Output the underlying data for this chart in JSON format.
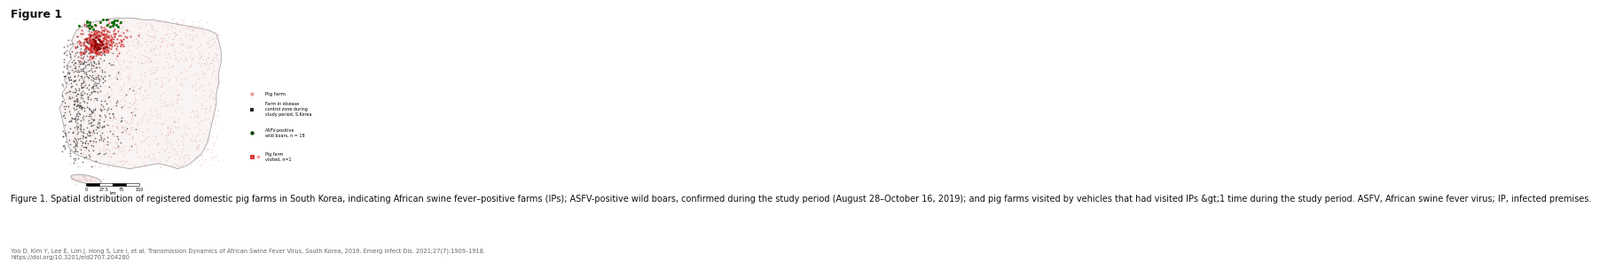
{
  "figure_title": "Figure 1",
  "caption": "Figure 1. Spatial distribution of registered domestic pig farms in South Korea, indicating African swine fever–positive farms (IPs); ASFV-positive wild boars, confirmed during the study period (August 28–October 16, 2019); and pig farms visited by vehicles that had visited IPs &gt;1 time during the study period. ASFV, African swine fever virus; IP, infected premises.",
  "citation": "Yoo D, Kim Y, Lee E, Lim J, Hong S, Lee I, et al. Transmission Dynamics of African Swine Fever Virus, South Korea, 2019. Emerg Infect Dis. 2021;27(7):1909–1918.\nhttps://doi.org/10.3201/eid2707.204280",
  "background_color": "#ffffff",
  "title_fontsize": 9,
  "caption_fontsize": 7,
  "citation_fontsize": 4.8,
  "legend_texts": [
    "Pig farm",
    "Farm in disease\ncontrol zone during\nstudy period, S.Korea",
    "ASFV-positive\nwild boars, n = 18",
    "Pig farm\nvisited, n=1"
  ],
  "legend_colors": [
    "#dd6666",
    "#222222",
    "#004400",
    "#cc0000"
  ],
  "legend_markers": [
    "o",
    "s",
    "^",
    "s"
  ],
  "scale_ticks": [
    "0",
    "27.5",
    "75",
    "150"
  ],
  "korea_fill": "#f8f0f0",
  "korea_edge": "#aaaaaa",
  "farm_pink_color": "#dd8888",
  "farm_black_color": "#333333",
  "farm_red_color": "#cc2222",
  "wild_boar_color": "#006600",
  "jeju_fill": "#f5e8e8",
  "jeju_edge": "#aaaaaa"
}
